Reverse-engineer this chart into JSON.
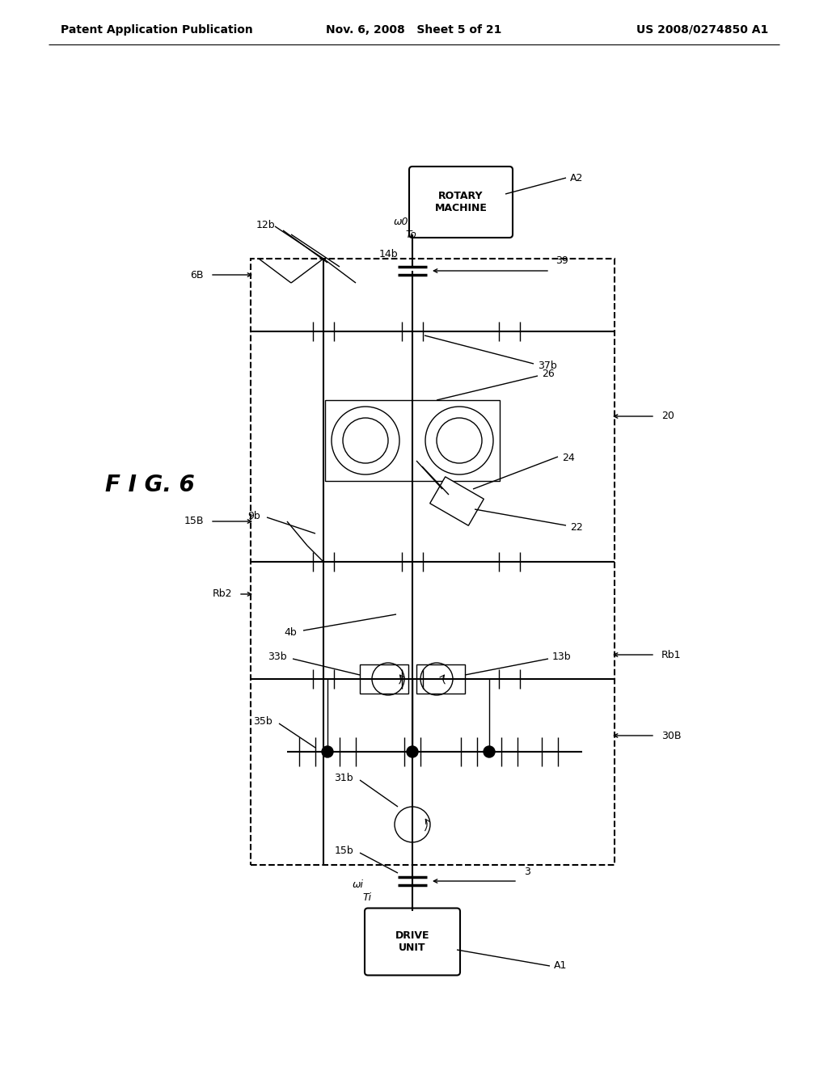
{
  "bg_color": "#ffffff",
  "line_color": "#000000",
  "fig_label": "F I G. 6",
  "header_left": "Patent Application Publication",
  "header_mid": "Nov. 6, 2008   Sheet 5 of 21",
  "header_right": "US 2008/0274850 A1"
}
